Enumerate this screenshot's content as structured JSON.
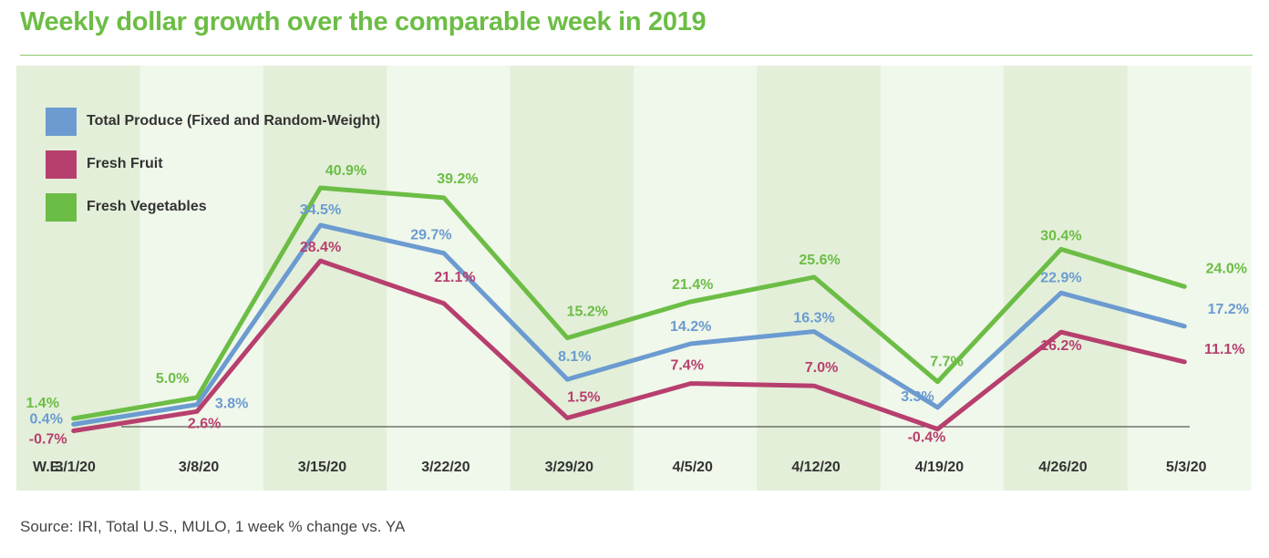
{
  "chart_data": {
    "type": "line",
    "title": "Weekly dollar growth over the comparable week in 2019",
    "x_axis_label": "W.E.",
    "categories": [
      "3/1/20",
      "3/8/20",
      "3/15/20",
      "3/22/20",
      "3/29/20",
      "4/5/20",
      "4/12/20",
      "4/19/20",
      "4/26/20",
      "5/3/20"
    ],
    "ylim": [
      -1,
      45
    ],
    "baseline": 0,
    "legend_position": "top-left",
    "series": [
      {
        "name": "Total Produce (Fixed and Random-Weight)",
        "color": "#6b9bd0",
        "values": [
          0.4,
          3.8,
          34.5,
          29.7,
          8.1,
          14.2,
          16.3,
          3.3,
          22.9,
          17.2
        ],
        "labels": [
          "0.4%",
          "3.8%",
          "34.5%",
          "29.7%",
          "8.1%",
          "14.2%",
          "16.3%",
          "3.3%",
          "22.9%",
          "17.2%"
        ]
      },
      {
        "name": "Fresh Fruit",
        "color": "#b73f6e",
        "values": [
          -0.7,
          2.6,
          28.4,
          21.1,
          1.5,
          7.4,
          7.0,
          -0.4,
          16.2,
          11.1
        ],
        "labels": [
          "-0.7%",
          "2.6%",
          "28.4%",
          "21.1%",
          "1.5%",
          "7.4%",
          "7.0%",
          "-0.4%",
          "16.2%",
          "11.1%"
        ]
      },
      {
        "name": "Fresh Vegetables",
        "color": "#6cbd45",
        "values": [
          1.4,
          5.0,
          40.9,
          39.2,
          15.2,
          21.4,
          25.6,
          7.7,
          30.4,
          24.0
        ],
        "labels": [
          "1.4%",
          "5.0%",
          "40.9%",
          "39.2%",
          "15.2%",
          "21.4%",
          "25.6%",
          "7.7%",
          "30.4%",
          "24.0%"
        ]
      }
    ]
  },
  "source": "Source: IRI, Total U.S., MULO, 1 week % change vs. YA"
}
